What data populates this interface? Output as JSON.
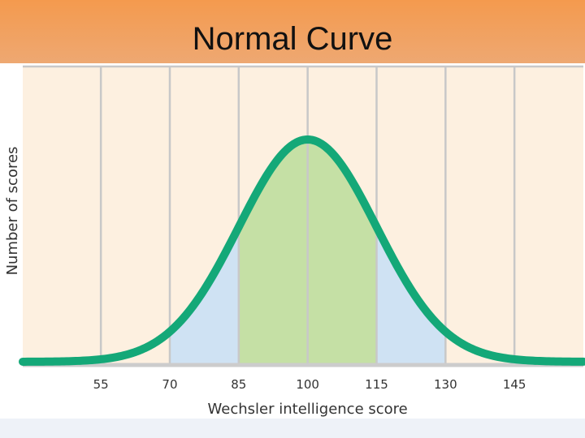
{
  "title": "Normal Curve",
  "chart_data": {
    "type": "area",
    "title": "Normal Curve",
    "xlabel": "Wechsler intelligence score",
    "ylabel": "Number of scores",
    "x_ticks": [
      55,
      70,
      85,
      100,
      115,
      130,
      145
    ],
    "xlim": [
      38,
      160
    ],
    "distribution": {
      "mean": 100,
      "sd": 15
    },
    "shaded_regions": [
      {
        "from": 85,
        "to": 115,
        "color": "#c5e0a5"
      },
      {
        "from": 70,
        "to": 85,
        "color": "#cfe2f3"
      },
      {
        "from": 115,
        "to": 130,
        "color": "#cfe2f3"
      }
    ],
    "grid": true,
    "legend": "none",
    "colors": {
      "curve": "#14a878",
      "plot_background": "#fdf0e0",
      "gridline": "#c8c8c8",
      "baseline": "#cccccc"
    }
  }
}
